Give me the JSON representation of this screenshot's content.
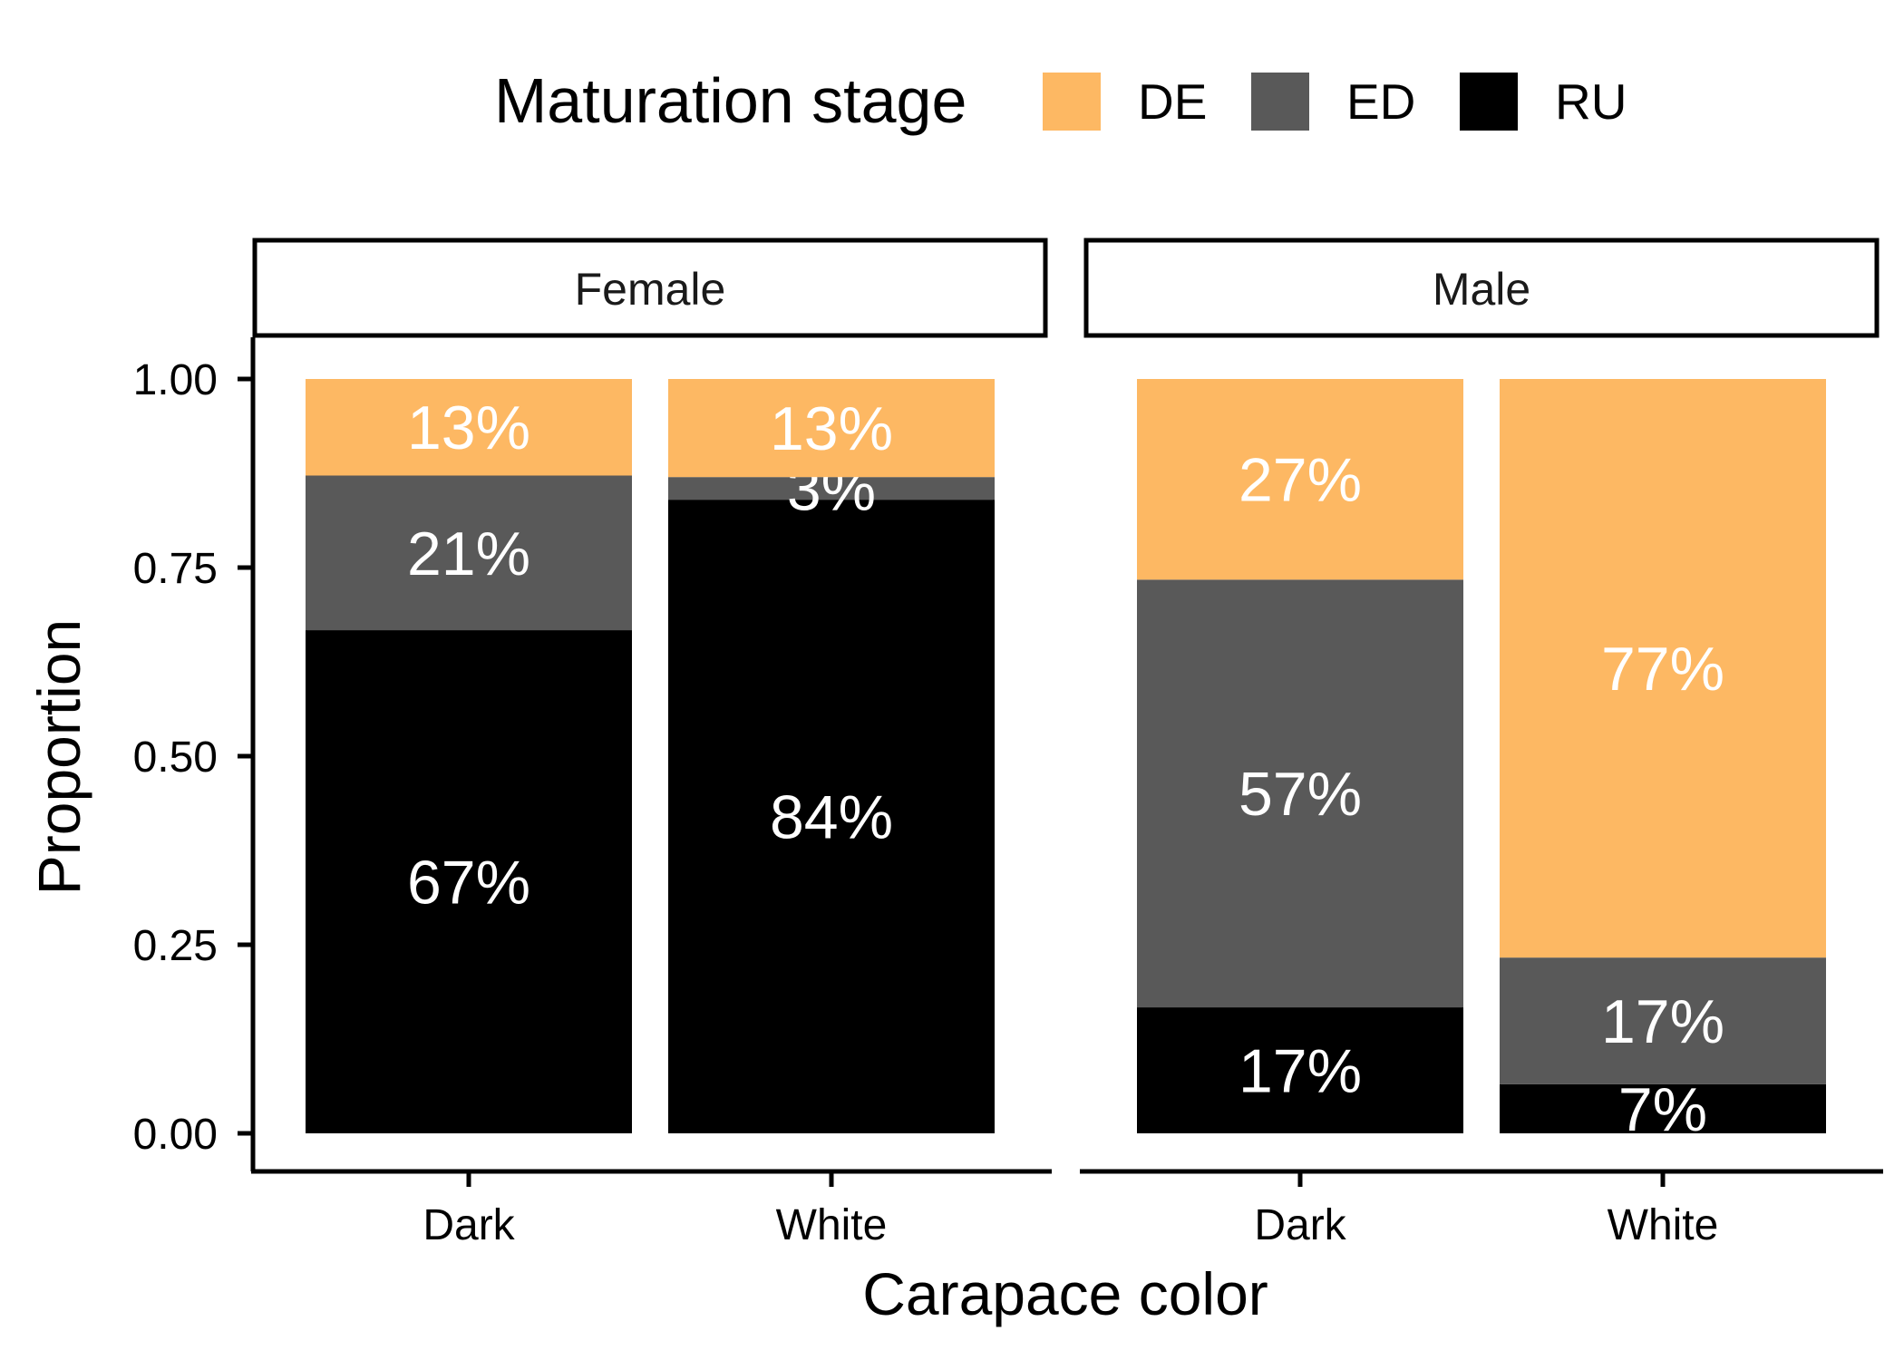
{
  "chart_data": {
    "type": "bar",
    "stacked": true,
    "xlabel": "Carapace color",
    "ylabel": "Proportion",
    "ylim": [
      0,
      1
    ],
    "yticks": [
      "0.00",
      "0.25",
      "0.50",
      "0.75",
      "1.00"
    ],
    "legend": {
      "title": "Maturation stage",
      "placement": "top",
      "entries": [
        {
          "name": "DE",
          "color": "#FDB863"
        },
        {
          "name": "ED",
          "color": "#595959"
        },
        {
          "name": "RU",
          "color": "#000000"
        }
      ]
    },
    "panels": [
      {
        "facet": "Female",
        "categories": [
          "Dark",
          "White"
        ],
        "series": [
          {
            "name": "RU",
            "values": [
              0.667,
              0.84
            ],
            "labels": [
              "67%",
              "84%"
            ]
          },
          {
            "name": "ED",
            "values": [
              0.205,
              0.03
            ],
            "labels": [
              "21%",
              "3%"
            ]
          },
          {
            "name": "DE",
            "values": [
              0.128,
              0.13
            ],
            "labels": [
              "13%",
              "13%"
            ]
          }
        ]
      },
      {
        "facet": "Male",
        "categories": [
          "Dark",
          "White"
        ],
        "series": [
          {
            "name": "RU",
            "values": [
              0.167,
              0.065
            ],
            "labels": [
              "17%",
              "7%"
            ]
          },
          {
            "name": "ED",
            "values": [
              0.567,
              0.168
            ],
            "labels": [
              "57%",
              "17%"
            ]
          },
          {
            "name": "DE",
            "values": [
              0.266,
              0.767
            ],
            "labels": [
              "27%",
              "77%"
            ]
          }
        ]
      }
    ]
  }
}
